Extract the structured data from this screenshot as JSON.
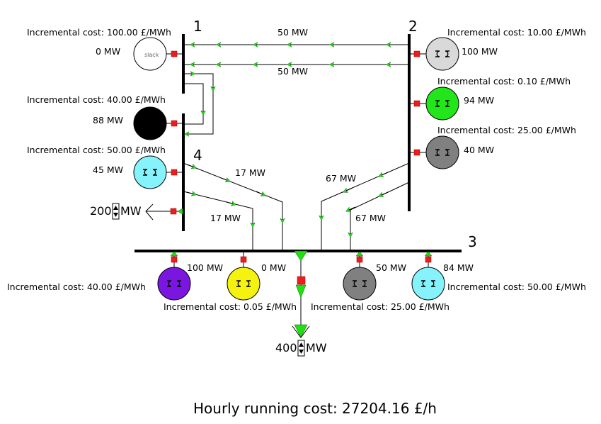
{
  "buses": [
    {
      "id": "bus-1",
      "label": "1"
    },
    {
      "id": "bus-2",
      "label": "2"
    },
    {
      "id": "bus-3",
      "label": "3"
    },
    {
      "id": "bus-4",
      "label": "4"
    }
  ],
  "generators": [
    {
      "id": "gen-bus1-slack",
      "cost": "Incremental cost: 100.00 £/MWh",
      "output": "0 MW",
      "color": "#ffffff",
      "badge": "slack"
    },
    {
      "id": "gen-bus1-purple",
      "cost": "Incremental cost: 40.00 £/MWh",
      "output": "88 MW",
      "color": "#7a16e0"
    },
    {
      "id": "gen-bus4-cyan",
      "cost": "Incremental cost: 50.00 £/MWh",
      "output": "45 MW",
      "color": "#86f2fb"
    },
    {
      "id": "gen-bus2-lightgray",
      "cost": "Incremental cost: 10.00 £/MWh",
      "output": "100 MW",
      "color": "#d9d9d9"
    },
    {
      "id": "gen-bus2-green",
      "cost": "Incremental cost: 0.10 £/MWh",
      "output": "94 MW",
      "color": "#22e619"
    },
    {
      "id": "gen-bus2-darkgray",
      "cost": "Incremental cost: 25.00 £/MWh",
      "output": "40 MW",
      "color": "#808080"
    },
    {
      "id": "gen-bus3-purple",
      "cost": "Incremental cost: 40.00 £/MWh",
      "output": "100 MW",
      "color": "#7a16e0"
    },
    {
      "id": "gen-bus3-yellow",
      "cost": "Incremental cost: 0.05 £/MWh",
      "output": "0 MW",
      "color": "#f4f20e"
    },
    {
      "id": "gen-bus3-darkgray",
      "cost": "Incremental cost: 25.00 £/MWh",
      "output": "50 MW",
      "color": "#808080"
    },
    {
      "id": "gen-bus3-cyan",
      "cost": "Incremental cost: 50.00 £/MWh",
      "output": "84 MW",
      "color": "#86f2fb"
    }
  ],
  "line_flows": [
    {
      "id": "flow-2-1-top",
      "value": "50 MW"
    },
    {
      "id": "flow-2-1-bottom",
      "value": "50 MW"
    },
    {
      "id": "flow-4-3-upper",
      "value": "17 MW"
    },
    {
      "id": "flow-4-3-lower",
      "value": "17 MW"
    },
    {
      "id": "flow-2-3-upper",
      "value": "67 MW"
    },
    {
      "id": "flow-2-3-lower",
      "value": "67 MW"
    }
  ],
  "loads": [
    {
      "id": "load-bus4",
      "value": "200",
      "unit": "MW"
    },
    {
      "id": "load-bus3",
      "value": "400",
      "unit": "MW"
    }
  ],
  "summary": {
    "cost": "Hourly running cost: 27204.16 £/h"
  },
  "colors": {
    "breaker": "#ee1c1c",
    "arrow": "#20e010"
  }
}
